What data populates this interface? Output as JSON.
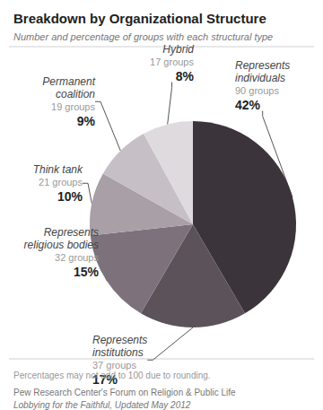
{
  "chart_data": {
    "type": "pie",
    "title": "Breakdown by Organizational Structure",
    "subtitle": "Number and percentage of groups with each structural type",
    "categories": [
      "Represents individuals",
      "Represents institutions",
      "Represents religious bodies",
      "Think tank",
      "Permanent coalition",
      "Hybrid"
    ],
    "values": [
      42,
      17,
      15,
      10,
      9,
      8
    ],
    "value_labels": [
      "42%",
      "17%",
      "15%",
      "10%",
      "9%",
      "8%"
    ],
    "group_labels": [
      "90 groups",
      "37 groups",
      "32 groups",
      "21 groups",
      "19 groups",
      "17 groups"
    ],
    "colors": [
      "#3b343a",
      "#5b525a",
      "#7d727c",
      "#a89fa7",
      "#c6bfc5",
      "#dedadd"
    ],
    "data_labels": true,
    "annotations": [
      "Percentages may not add to 100 due to rounding.",
      "Pew Research Center's Forum on Religion & Public Life",
      "Lobbying for the Faithful, Updated May 2012"
    ]
  }
}
